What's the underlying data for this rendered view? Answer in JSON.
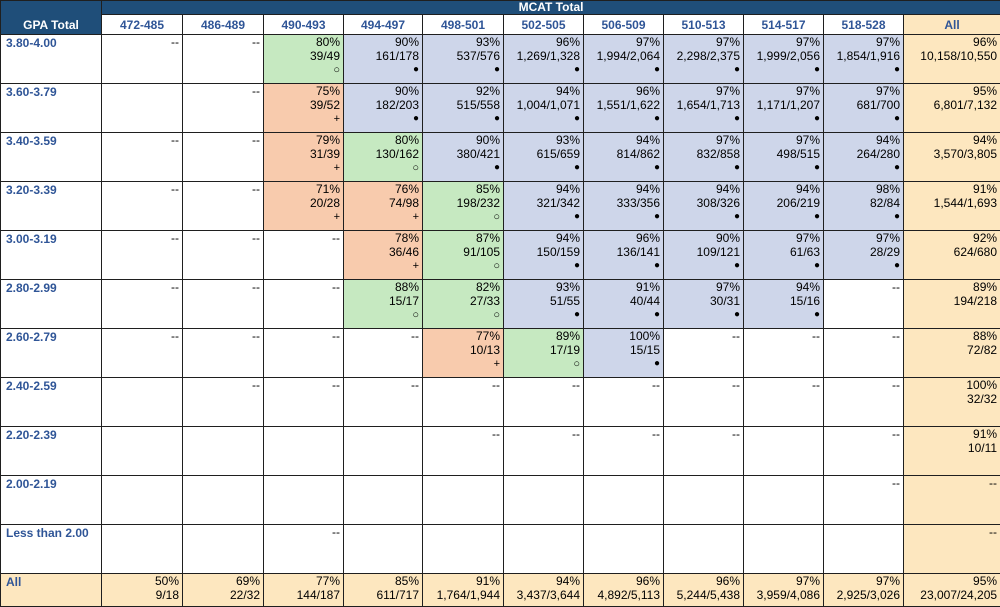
{
  "header": {
    "corner_label": "GPA Total",
    "mcat_label": "MCAT Total",
    "columns": [
      "472-485",
      "486-489",
      "490-493",
      "494-497",
      "498-501",
      "502-505",
      "506-509",
      "510-513",
      "514-517",
      "518-528",
      "All"
    ]
  },
  "legend_symbols": {
    "open": "○",
    "filled": "●",
    "plus": "+"
  },
  "colors": {
    "header": "#1f4e79",
    "label_text": "#2f5597",
    "orange": "#f8cbad",
    "green": "#c6e9c1",
    "blue": "#ced6ea",
    "tan": "#fde7bf",
    "white": "#ffffff"
  },
  "rows": [
    {
      "gpa": "3.80-4.00",
      "cells": [
        {
          "dash": "--"
        },
        {
          "dash": "--"
        },
        {
          "pct": "80%",
          "frac": "39/49",
          "sym": "○"
        },
        {
          "pct": "90%",
          "frac": "161/178",
          "sym": "●"
        },
        {
          "pct": "93%",
          "frac": "537/576",
          "sym": "●"
        },
        {
          "pct": "96%",
          "frac": "1,269/1,328",
          "sym": "●"
        },
        {
          "pct": "97%",
          "frac": "1,994/2,064",
          "sym": "●"
        },
        {
          "pct": "97%",
          "frac": "2,298/2,375",
          "sym": "●"
        },
        {
          "pct": "97%",
          "frac": "1,999/2,056",
          "sym": "●"
        },
        {
          "pct": "97%",
          "frac": "1,854/1,916",
          "sym": "●"
        },
        {
          "pct": "96%",
          "frac": "10,158/10,550"
        }
      ]
    },
    {
      "gpa": "3.60-3.79",
      "cells": [
        {},
        {
          "dash": "--"
        },
        {
          "pct": "75%",
          "frac": "39/52",
          "sym": "+"
        },
        {
          "pct": "90%",
          "frac": "182/203",
          "sym": "●"
        },
        {
          "pct": "92%",
          "frac": "515/558",
          "sym": "●"
        },
        {
          "pct": "94%",
          "frac": "1,004/1,071",
          "sym": "●"
        },
        {
          "pct": "96%",
          "frac": "1,551/1,622",
          "sym": "●"
        },
        {
          "pct": "97%",
          "frac": "1,654/1,713",
          "sym": "●"
        },
        {
          "pct": "97%",
          "frac": "1,171/1,207",
          "sym": "●"
        },
        {
          "pct": "97%",
          "frac": "681/700",
          "sym": "●"
        },
        {
          "pct": "95%",
          "frac": "6,801/7,132"
        }
      ]
    },
    {
      "gpa": "3.40-3.59",
      "cells": [
        {
          "dash": "--"
        },
        {
          "dash": "--"
        },
        {
          "pct": "79%",
          "frac": "31/39",
          "sym": "+"
        },
        {
          "pct": "80%",
          "frac": "130/162",
          "sym": "○"
        },
        {
          "pct": "90%",
          "frac": "380/421",
          "sym": "●"
        },
        {
          "pct": "93%",
          "frac": "615/659",
          "sym": "●"
        },
        {
          "pct": "94%",
          "frac": "814/862",
          "sym": "●"
        },
        {
          "pct": "97%",
          "frac": "832/858",
          "sym": "●"
        },
        {
          "pct": "97%",
          "frac": "498/515",
          "sym": "●"
        },
        {
          "pct": "94%",
          "frac": "264/280",
          "sym": "●"
        },
        {
          "pct": "94%",
          "frac": "3,570/3,805"
        }
      ]
    },
    {
      "gpa": "3.20-3.39",
      "cells": [
        {
          "dash": "--"
        },
        {
          "dash": "--"
        },
        {
          "pct": "71%",
          "frac": "20/28",
          "sym": "+"
        },
        {
          "pct": "76%",
          "frac": "74/98",
          "sym": "+"
        },
        {
          "pct": "85%",
          "frac": "198/232",
          "sym": "○"
        },
        {
          "pct": "94%",
          "frac": "321/342",
          "sym": "●"
        },
        {
          "pct": "94%",
          "frac": "333/356",
          "sym": "●"
        },
        {
          "pct": "94%",
          "frac": "308/326",
          "sym": "●"
        },
        {
          "pct": "94%",
          "frac": "206/219",
          "sym": "●"
        },
        {
          "pct": "98%",
          "frac": "82/84",
          "sym": "●"
        },
        {
          "pct": "91%",
          "frac": "1,544/1,693"
        }
      ]
    },
    {
      "gpa": "3.00-3.19",
      "cells": [
        {
          "dash": "--"
        },
        {
          "dash": "--"
        },
        {
          "dash": "--"
        },
        {
          "pct": "78%",
          "frac": "36/46",
          "sym": "+"
        },
        {
          "pct": "87%",
          "frac": "91/105",
          "sym": "○"
        },
        {
          "pct": "94%",
          "frac": "150/159",
          "sym": "●"
        },
        {
          "pct": "96%",
          "frac": "136/141",
          "sym": "●"
        },
        {
          "pct": "90%",
          "frac": "109/121",
          "sym": "●"
        },
        {
          "pct": "97%",
          "frac": "61/63",
          "sym": "●"
        },
        {
          "pct": "97%",
          "frac": "28/29",
          "sym": "●"
        },
        {
          "pct": "92%",
          "frac": "624/680"
        }
      ]
    },
    {
      "gpa": "2.80-2.99",
      "cells": [
        {
          "dash": "--"
        },
        {
          "dash": "--"
        },
        {
          "dash": "--"
        },
        {
          "pct": "88%",
          "frac": "15/17",
          "sym": "○"
        },
        {
          "pct": "82%",
          "frac": "27/33",
          "sym": "○"
        },
        {
          "pct": "93%",
          "frac": "51/55",
          "sym": "●"
        },
        {
          "pct": "91%",
          "frac": "40/44",
          "sym": "●"
        },
        {
          "pct": "97%",
          "frac": "30/31",
          "sym": "●"
        },
        {
          "pct": "94%",
          "frac": "15/16",
          "sym": "●"
        },
        {
          "dash": "--"
        },
        {
          "pct": "89%",
          "frac": "194/218"
        }
      ]
    },
    {
      "gpa": "2.60-2.79",
      "cells": [
        {
          "dash": "--"
        },
        {
          "dash": "--"
        },
        {
          "dash": "--"
        },
        {
          "dash": "--"
        },
        {
          "pct": "77%",
          "frac": "10/13",
          "sym": "+"
        },
        {
          "pct": "89%",
          "frac": "17/19",
          "sym": "○"
        },
        {
          "pct": "100%",
          "frac": "15/15",
          "sym": "●"
        },
        {
          "dash": "--"
        },
        {
          "dash": "--"
        },
        {
          "dash": "--"
        },
        {
          "pct": "88%",
          "frac": "72/82"
        }
      ]
    },
    {
      "gpa": "2.40-2.59",
      "cells": [
        {},
        {
          "dash": "--"
        },
        {
          "dash": "--"
        },
        {
          "dash": "--"
        },
        {
          "dash": "--"
        },
        {
          "dash": "--"
        },
        {
          "dash": "--"
        },
        {
          "dash": "--"
        },
        {
          "dash": "--"
        },
        {
          "dash": "--"
        },
        {
          "pct": "100%",
          "frac": "32/32"
        }
      ]
    },
    {
      "gpa": "2.20-2.39",
      "cells": [
        {},
        {},
        {},
        {},
        {
          "dash": "--"
        },
        {
          "dash": "--"
        },
        {
          "dash": "--"
        },
        {
          "dash": "--"
        },
        {},
        {
          "dash": "--"
        },
        {
          "pct": "91%",
          "frac": "10/11"
        }
      ]
    },
    {
      "gpa": "2.00-2.19",
      "cells": [
        {},
        {},
        {},
        {},
        {},
        {},
        {},
        {},
        {},
        {
          "dash": "--"
        },
        {
          "dash": "--"
        }
      ]
    },
    {
      "gpa": "Less than 2.00",
      "cells": [
        {},
        {},
        {
          "dash": "--"
        },
        {},
        {},
        {},
        {},
        {},
        {},
        {},
        {
          "dash": "--"
        }
      ]
    }
  ],
  "all_row": {
    "label": "All",
    "cells": [
      {
        "pct": "50%",
        "frac": "9/18"
      },
      {
        "pct": "69%",
        "frac": "22/32"
      },
      {
        "pct": "77%",
        "frac": "144/187"
      },
      {
        "pct": "85%",
        "frac": "611/717"
      },
      {
        "pct": "91%",
        "frac": "1,764/1,944"
      },
      {
        "pct": "94%",
        "frac": "3,437/3,644"
      },
      {
        "pct": "96%",
        "frac": "4,892/5,113"
      },
      {
        "pct": "96%",
        "frac": "5,244/5,438"
      },
      {
        "pct": "97%",
        "frac": "3,959/4,086"
      },
      {
        "pct": "97%",
        "frac": "2,925/3,026"
      },
      {
        "pct": "95%",
        "frac": "23,007/24,205"
      }
    ]
  }
}
